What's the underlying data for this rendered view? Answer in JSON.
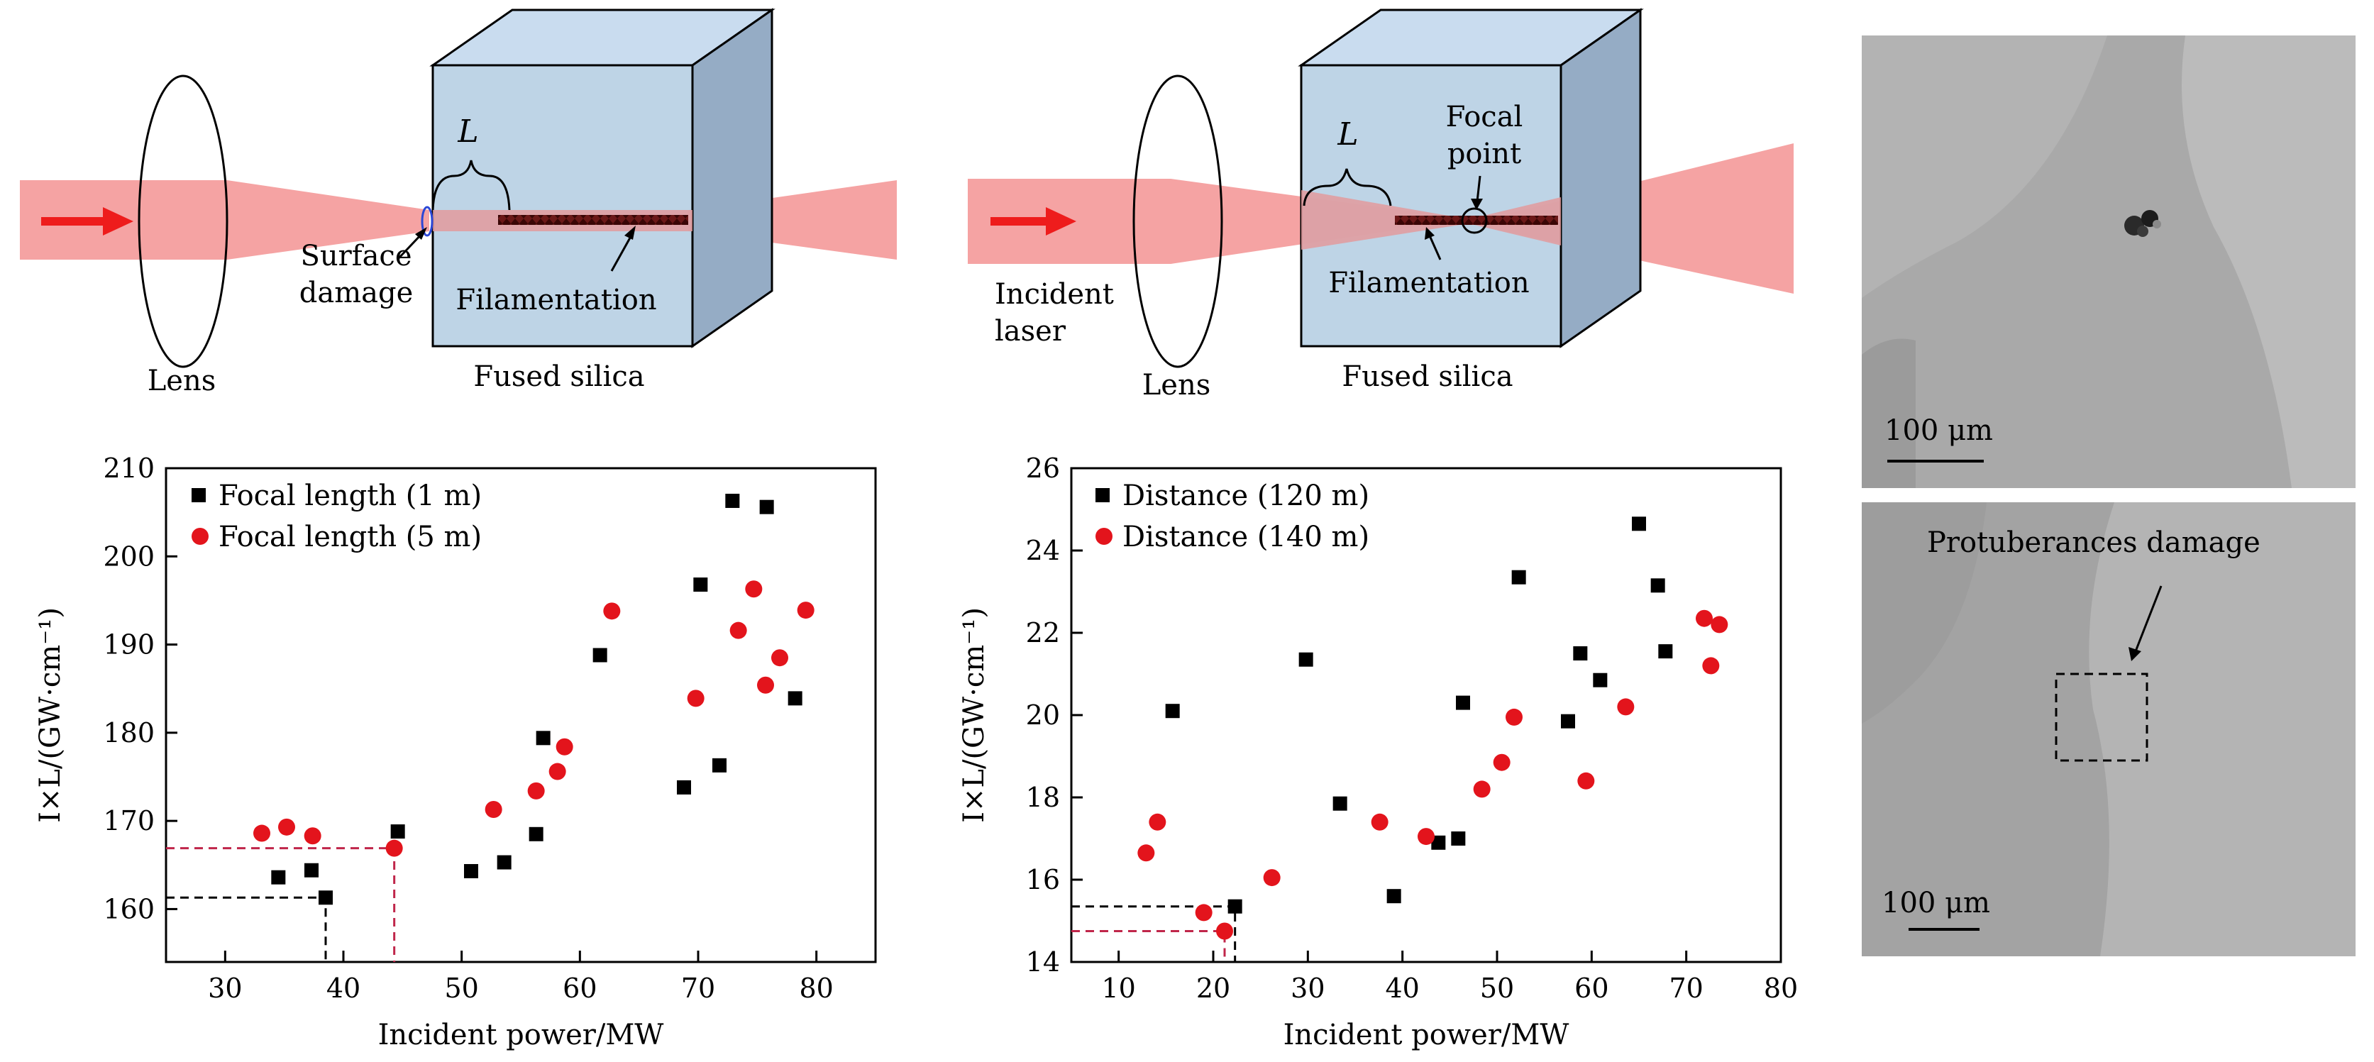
{
  "diagram_left": {
    "lens_label": "Lens",
    "block_label": "Fused silica",
    "length_label": "L",
    "surface_damage_label": [
      "Surface",
      "damage"
    ],
    "filamentation_label": "Filamentation"
  },
  "diagram_middle": {
    "incident_label": [
      "Incident",
      "laser"
    ],
    "lens_label": "Lens",
    "block_label": "Fused silica",
    "length_label": "L",
    "focal_point_label": [
      "Focal",
      "point"
    ],
    "filamentation_label": "Filamentation"
  },
  "micrographs": {
    "top_scale": "100 μm",
    "bottom_scale": "100 μm",
    "bottom_annotation": "Protuberances damage"
  },
  "colors": {
    "beam": "#f5a3a3",
    "arrow": "#ee1c1c",
    "block_front": "#b7cfe3",
    "block_top": "#c9dcef",
    "block_side": "#95acc5",
    "filament": "#6b1818",
    "series_black": "#000000",
    "series_red": "#e3141c",
    "guide_red": "#c0264a",
    "micro_top": "#a9a9a9",
    "micro_bottom": "#a3a3a3"
  },
  "chart_data": [
    {
      "type": "scatter",
      "title": "",
      "xlabel": "Incident power/MW",
      "ylabel": "I×L/(GW·cm⁻¹)",
      "xlim": [
        25,
        85
      ],
      "ylim": [
        154,
        210
      ],
      "xticks": [
        30,
        40,
        50,
        60,
        70,
        80
      ],
      "yticks": [
        160,
        170,
        180,
        190,
        200,
        210
      ],
      "legend_position": "top-left",
      "series": [
        {
          "name": "Focal length (1 m)",
          "marker": "square",
          "color": "#000000",
          "points": [
            [
              34.5,
              163.6
            ],
            [
              37.3,
              164.4
            ],
            [
              38.5,
              161.3
            ],
            [
              44.6,
              168.8
            ],
            [
              50.8,
              164.3
            ],
            [
              53.6,
              165.3
            ],
            [
              56.3,
              168.5
            ],
            [
              56.9,
              179.4
            ],
            [
              61.7,
              188.8
            ],
            [
              68.8,
              173.8
            ],
            [
              70.2,
              196.8
            ],
            [
              71.8,
              176.3
            ],
            [
              72.9,
              206.3
            ],
            [
              75.8,
              205.6
            ],
            [
              78.2,
              183.9
            ]
          ]
        },
        {
          "name": "Focal length (5 m)",
          "marker": "circle",
          "color": "#e3141c",
          "points": [
            [
              33.1,
              168.6
            ],
            [
              35.2,
              169.3
            ],
            [
              37.4,
              168.3
            ],
            [
              44.3,
              166.9
            ],
            [
              52.7,
              171.3
            ],
            [
              56.3,
              173.4
            ],
            [
              58.1,
              175.6
            ],
            [
              58.7,
              178.4
            ],
            [
              62.7,
              193.8
            ],
            [
              69.8,
              183.9
            ],
            [
              73.4,
              191.6
            ],
            [
              74.7,
              196.3
            ],
            [
              75.7,
              185.4
            ],
            [
              76.9,
              188.5
            ],
            [
              79.1,
              193.9
            ]
          ]
        }
      ],
      "guides": [
        {
          "y": 161.3,
          "x": 38.5,
          "color": "#000000"
        },
        {
          "y": 166.9,
          "x": 44.3,
          "color": "#c0264a"
        }
      ]
    },
    {
      "type": "scatter",
      "title": "",
      "xlabel": "Incident power/MW",
      "ylabel": "I×L/(GW·cm⁻¹)",
      "xlim": [
        5,
        80
      ],
      "ylim": [
        14,
        26
      ],
      "xticks": [
        10,
        20,
        30,
        40,
        50,
        60,
        70,
        80
      ],
      "yticks": [
        14,
        16,
        18,
        20,
        22,
        24,
        26
      ],
      "legend_position": "top-left",
      "series": [
        {
          "name": "Distance (120 m)",
          "marker": "square",
          "color": "#000000",
          "points": [
            [
              15.7,
              20.1
            ],
            [
              22.3,
              15.35
            ],
            [
              29.8,
              21.35
            ],
            [
              33.4,
              17.85
            ],
            [
              39.1,
              15.6
            ],
            [
              43.8,
              16.9
            ],
            [
              45.9,
              17.0
            ],
            [
              46.4,
              20.3
            ],
            [
              52.3,
              23.35
            ],
            [
              57.5,
              19.85
            ],
            [
              58.8,
              21.5
            ],
            [
              60.9,
              20.85
            ],
            [
              65.0,
              24.65
            ],
            [
              67.0,
              23.15
            ],
            [
              67.8,
              21.55
            ]
          ]
        },
        {
          "name": "Distance (140 m)",
          "marker": "circle",
          "color": "#e3141c",
          "points": [
            [
              12.9,
              16.65
            ],
            [
              14.1,
              17.4
            ],
            [
              19.0,
              15.2
            ],
            [
              21.2,
              14.75
            ],
            [
              26.2,
              16.05
            ],
            [
              37.6,
              17.4
            ],
            [
              42.5,
              17.05
            ],
            [
              48.4,
              18.2
            ],
            [
              50.5,
              18.85
            ],
            [
              51.8,
              19.95
            ],
            [
              59.4,
              18.4
            ],
            [
              63.6,
              20.2
            ],
            [
              71.9,
              22.35
            ],
            [
              72.6,
              21.2
            ],
            [
              73.5,
              22.2
            ]
          ]
        }
      ],
      "guides": [
        {
          "y": 15.35,
          "x": 22.3,
          "color": "#000000"
        },
        {
          "y": 14.75,
          "x": 21.2,
          "color": "#c0264a"
        }
      ]
    }
  ]
}
